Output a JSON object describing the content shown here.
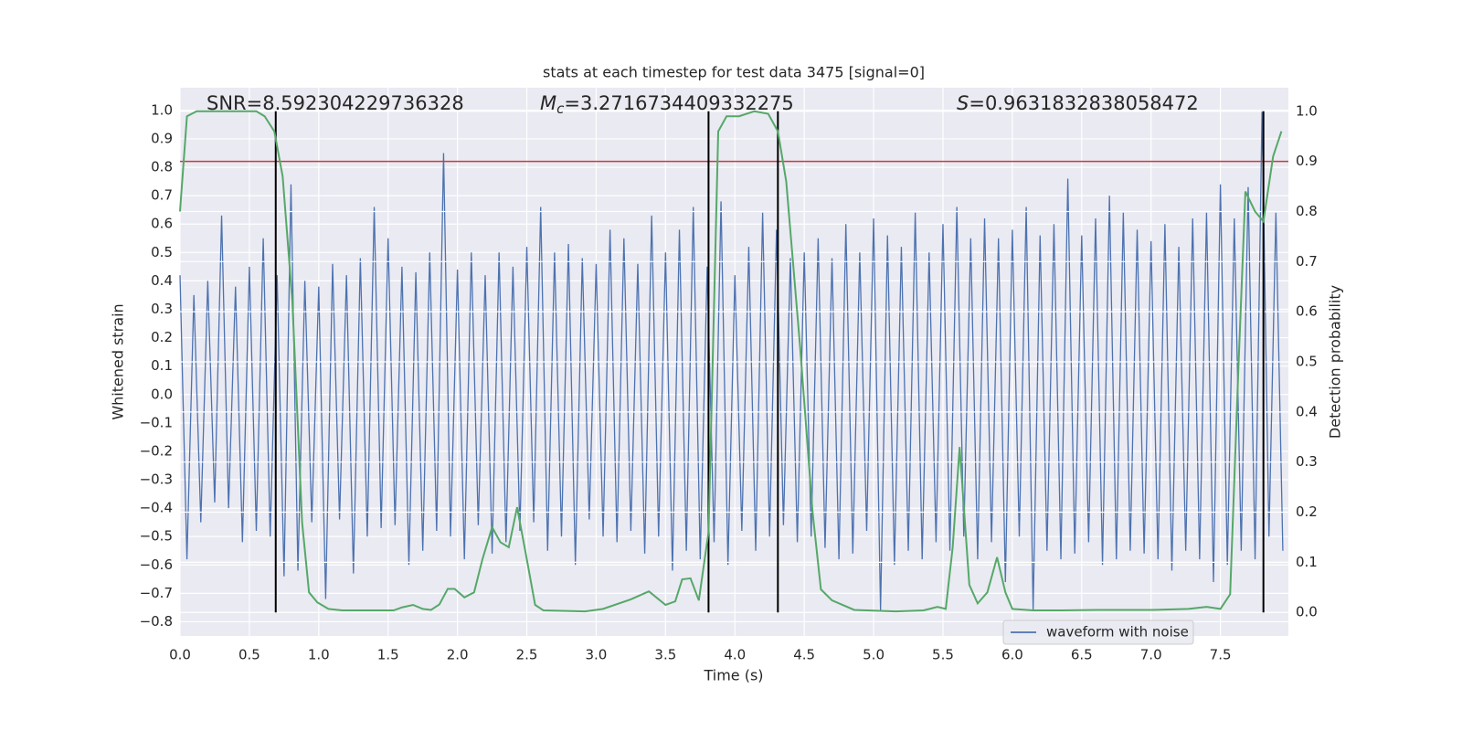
{
  "chart_data": {
    "type": "line",
    "title": "stats at each timestep for test data 3475 [signal=0]",
    "xlabel": "Time (s)",
    "ylabel": "Whitened strain",
    "y2label": "Detection probability",
    "annotations": [
      {
        "text": "SNR=8.592304229736328"
      },
      {
        "symbol": "M",
        "subscript": "c",
        "text": "=3.2716734409332275"
      },
      {
        "symbol": "S",
        "text": "=0.9631832838058472"
      }
    ],
    "xlim": [
      0,
      7.99
    ],
    "ylim": [
      -0.85,
      1.08
    ],
    "y2lim": [
      -0.047,
      1.047
    ],
    "xticks": [
      {
        "value": 0,
        "label": "0.0"
      },
      0.5,
      {
        "value": 1,
        "label": "1.0"
      },
      1.5,
      {
        "value": 2,
        "label": "2.0"
      },
      2.5,
      {
        "value": 3,
        "label": "3.0"
      },
      3.5,
      {
        "value": 4,
        "label": "4.0"
      },
      4.5,
      {
        "value": 5,
        "label": "5.0"
      },
      5.5,
      {
        "value": 6,
        "label": "6.0"
      },
      6.5,
      {
        "value": 7,
        "label": "7.0"
      },
      7.5
    ],
    "yticks": [
      {
        "value": -0.8,
        "label": "−0.8"
      },
      {
        "value": -0.7,
        "label": "−0.7"
      },
      {
        "value": -0.6,
        "label": "−0.6"
      },
      {
        "value": -0.5,
        "label": "−0.5"
      },
      {
        "value": -0.4,
        "label": "−0.4"
      },
      {
        "value": -0.3,
        "label": "−0.3"
      },
      {
        "value": -0.2,
        "label": "−0.2"
      },
      {
        "value": -0.1,
        "label": "−0.1"
      },
      {
        "value": 0,
        "label": "0.0"
      },
      0.1,
      0.2,
      0.3,
      0.4,
      0.5,
      0.6,
      0.7,
      0.8,
      0.9,
      {
        "value": 1,
        "label": "1.0"
      }
    ],
    "y2ticks": [
      {
        "value": 0,
        "label": "0.0"
      },
      0.1,
      0.2,
      0.3,
      0.4,
      0.5,
      0.6,
      0.7,
      0.8,
      0.9,
      {
        "value": 1,
        "label": "1.0"
      }
    ],
    "grid": true,
    "background": "#eaeaf2",
    "legend": "lower right",
    "hline": {
      "y2": 0.9,
      "color": "#c03d3e"
    },
    "vlines": {
      "x": [
        0.69,
        3.81,
        4.31,
        7.81
      ],
      "y2_from": 0,
      "y2_to": 1,
      "color": "#000000"
    },
    "series": [
      {
        "name": "waveform with noise",
        "color": "#4c72b0",
        "x": [
          0,
          0.05,
          0.1,
          0.15,
          0.2,
          0.25,
          0.3,
          0.35,
          0.4,
          0.45,
          0.5,
          0.55,
          0.6,
          0.65,
          0.7,
          0.75,
          0.8,
          0.85,
          0.9,
          0.95,
          1,
          1.05,
          1.1,
          1.15,
          1.2,
          1.25,
          1.3,
          1.35,
          1.4,
          1.45,
          1.5,
          1.55,
          1.6,
          1.65,
          1.7,
          1.75,
          1.8,
          1.85,
          1.9,
          1.95,
          2,
          2.05,
          2.1,
          2.15,
          2.2,
          2.25,
          2.3,
          2.35,
          2.4,
          2.45,
          2.5,
          2.55,
          2.6,
          2.65,
          2.7,
          2.75,
          2.8,
          2.85,
          2.9,
          2.95,
          3,
          3.05,
          3.1,
          3.15,
          3.2,
          3.25,
          3.3,
          3.35,
          3.4,
          3.45,
          3.5,
          3.55,
          3.6,
          3.65,
          3.7,
          3.75,
          3.8,
          3.85,
          3.9,
          3.95,
          4,
          4.05,
          4.1,
          4.15,
          4.2,
          4.25,
          4.3,
          4.35,
          4.4,
          4.45,
          4.5,
          4.55,
          4.6,
          4.65,
          4.7,
          4.75,
          4.8,
          4.85,
          4.9,
          4.95,
          5,
          5.05,
          5.1,
          5.15,
          5.2,
          5.25,
          5.3,
          5.35,
          5.4,
          5.45,
          5.5,
          5.55,
          5.6,
          5.65,
          5.7,
          5.75,
          5.8,
          5.85,
          5.9,
          5.95,
          6,
          6.05,
          6.1,
          6.15,
          6.2,
          6.25,
          6.3,
          6.35,
          6.4,
          6.45,
          6.5,
          6.55,
          6.6,
          6.65,
          6.7,
          6.75,
          6.8,
          6.85,
          6.9,
          6.95,
          7,
          7.05,
          7.1,
          7.15,
          7.2,
          7.25,
          7.3,
          7.35,
          7.4,
          7.45,
          7.5,
          7.55,
          7.6,
          7.65,
          7.7,
          7.75,
          7.8,
          7.85,
          7.9,
          7.95
        ],
        "values": [
          0.42,
          -0.58,
          0.35,
          -0.45,
          0.4,
          -0.38,
          0.63,
          -0.4,
          0.38,
          -0.52,
          0.45,
          -0.48,
          0.55,
          -0.5,
          0.42,
          -0.64,
          0.74,
          -0.62,
          0.4,
          -0.45,
          0.38,
          -0.72,
          0.46,
          -0.44,
          0.42,
          -0.63,
          0.48,
          -0.5,
          0.66,
          -0.47,
          0.55,
          -0.46,
          0.45,
          -0.6,
          0.43,
          -0.55,
          0.5,
          -0.48,
          0.85,
          -0.5,
          0.44,
          -0.58,
          0.5,
          -0.46,
          0.42,
          -0.56,
          0.5,
          -0.52,
          0.45,
          -0.48,
          0.52,
          -0.45,
          0.66,
          -0.55,
          0.5,
          -0.5,
          0.53,
          -0.6,
          0.48,
          -0.44,
          0.46,
          -0.5,
          0.58,
          -0.52,
          0.55,
          -0.48,
          0.46,
          -0.56,
          0.63,
          -0.5,
          0.5,
          -0.62,
          0.58,
          -0.55,
          0.66,
          -0.58,
          0.45,
          -0.52,
          0.68,
          -0.6,
          0.42,
          -0.48,
          0.52,
          -0.55,
          0.64,
          -0.5,
          0.58,
          -0.46,
          0.48,
          -0.52,
          0.5,
          -0.5,
          0.55,
          -0.54,
          0.48,
          -0.58,
          0.6,
          -0.56,
          0.5,
          -0.48,
          0.62,
          -0.76,
          0.56,
          -0.6,
          0.52,
          -0.55,
          0.64,
          -0.58,
          0.5,
          -0.52,
          0.6,
          -0.55,
          0.66,
          -0.5,
          0.55,
          -0.58,
          0.62,
          -0.52,
          0.55,
          -0.66,
          0.58,
          -0.5,
          0.66,
          -0.76,
          0.56,
          -0.55,
          0.6,
          -0.58,
          0.76,
          -0.56,
          0.56,
          -0.52,
          0.62,
          -0.6,
          0.7,
          -0.58,
          0.64,
          -0.55,
          0.58,
          -0.56,
          0.54,
          -0.58,
          0.6,
          -0.62,
          0.52,
          -0.55,
          0.62,
          -0.58,
          0.64,
          -0.66,
          0.74,
          -0.6,
          0.62,
          -0.55,
          0.73,
          -0.58,
          1.0,
          -0.5,
          0.64,
          -0.55
        ]
      },
      {
        "color": "#55a868",
        "axis": "y2",
        "x": [
          0,
          0.05,
          0.12,
          0.55,
          0.61,
          0.68,
          0.74,
          0.81,
          0.88,
          0.93,
          0.99,
          1.07,
          1.17,
          1.54,
          1.6,
          1.68,
          1.75,
          1.81,
          1.87,
          1.93,
          1.98,
          2.05,
          2.12,
          2.18,
          2.25,
          2.31,
          2.37,
          2.43,
          2.5,
          2.56,
          2.62,
          2.92,
          3.05,
          3.25,
          3.38,
          3.5,
          3.57,
          3.62,
          3.68,
          3.74,
          3.81,
          3.88,
          3.94,
          4.03,
          4.14,
          4.24,
          4.31,
          4.37,
          4.47,
          4.56,
          4.62,
          4.7,
          4.86,
          5.16,
          5.36,
          5.46,
          5.52,
          5.57,
          5.62,
          5.69,
          5.75,
          5.82,
          5.89,
          5.95,
          6.0,
          6.15,
          6.35,
          6.61,
          7.01,
          7.27,
          7.4,
          7.5,
          7.57,
          7.63,
          7.68,
          7.75,
          7.81,
          7.88,
          7.94
        ],
        "values": [
          0.8,
          0.99,
          1.0,
          1.0,
          0.99,
          0.96,
          0.87,
          0.62,
          0.18,
          0.04,
          0.02,
          0.007,
          0.004,
          0.004,
          0.01,
          0.015,
          0.007,
          0.005,
          0.016,
          0.047,
          0.047,
          0.03,
          0.04,
          0.106,
          0.17,
          0.14,
          0.13,
          0.21,
          0.106,
          0.015,
          0.004,
          0.002,
          0.007,
          0.026,
          0.042,
          0.015,
          0.022,
          0.066,
          0.068,
          0.024,
          0.16,
          0.96,
          0.99,
          0.99,
          1.0,
          0.995,
          0.96,
          0.86,
          0.53,
          0.2,
          0.046,
          0.024,
          0.005,
          0.002,
          0.004,
          0.011,
          0.007,
          0.13,
          0.33,
          0.055,
          0.018,
          0.04,
          0.11,
          0.04,
          0.007,
          0.004,
          0.004,
          0.005,
          0.005,
          0.007,
          0.011,
          0.007,
          0.036,
          0.49,
          0.84,
          0.8,
          0.78,
          0.91,
          0.96
        ]
      }
    ]
  }
}
